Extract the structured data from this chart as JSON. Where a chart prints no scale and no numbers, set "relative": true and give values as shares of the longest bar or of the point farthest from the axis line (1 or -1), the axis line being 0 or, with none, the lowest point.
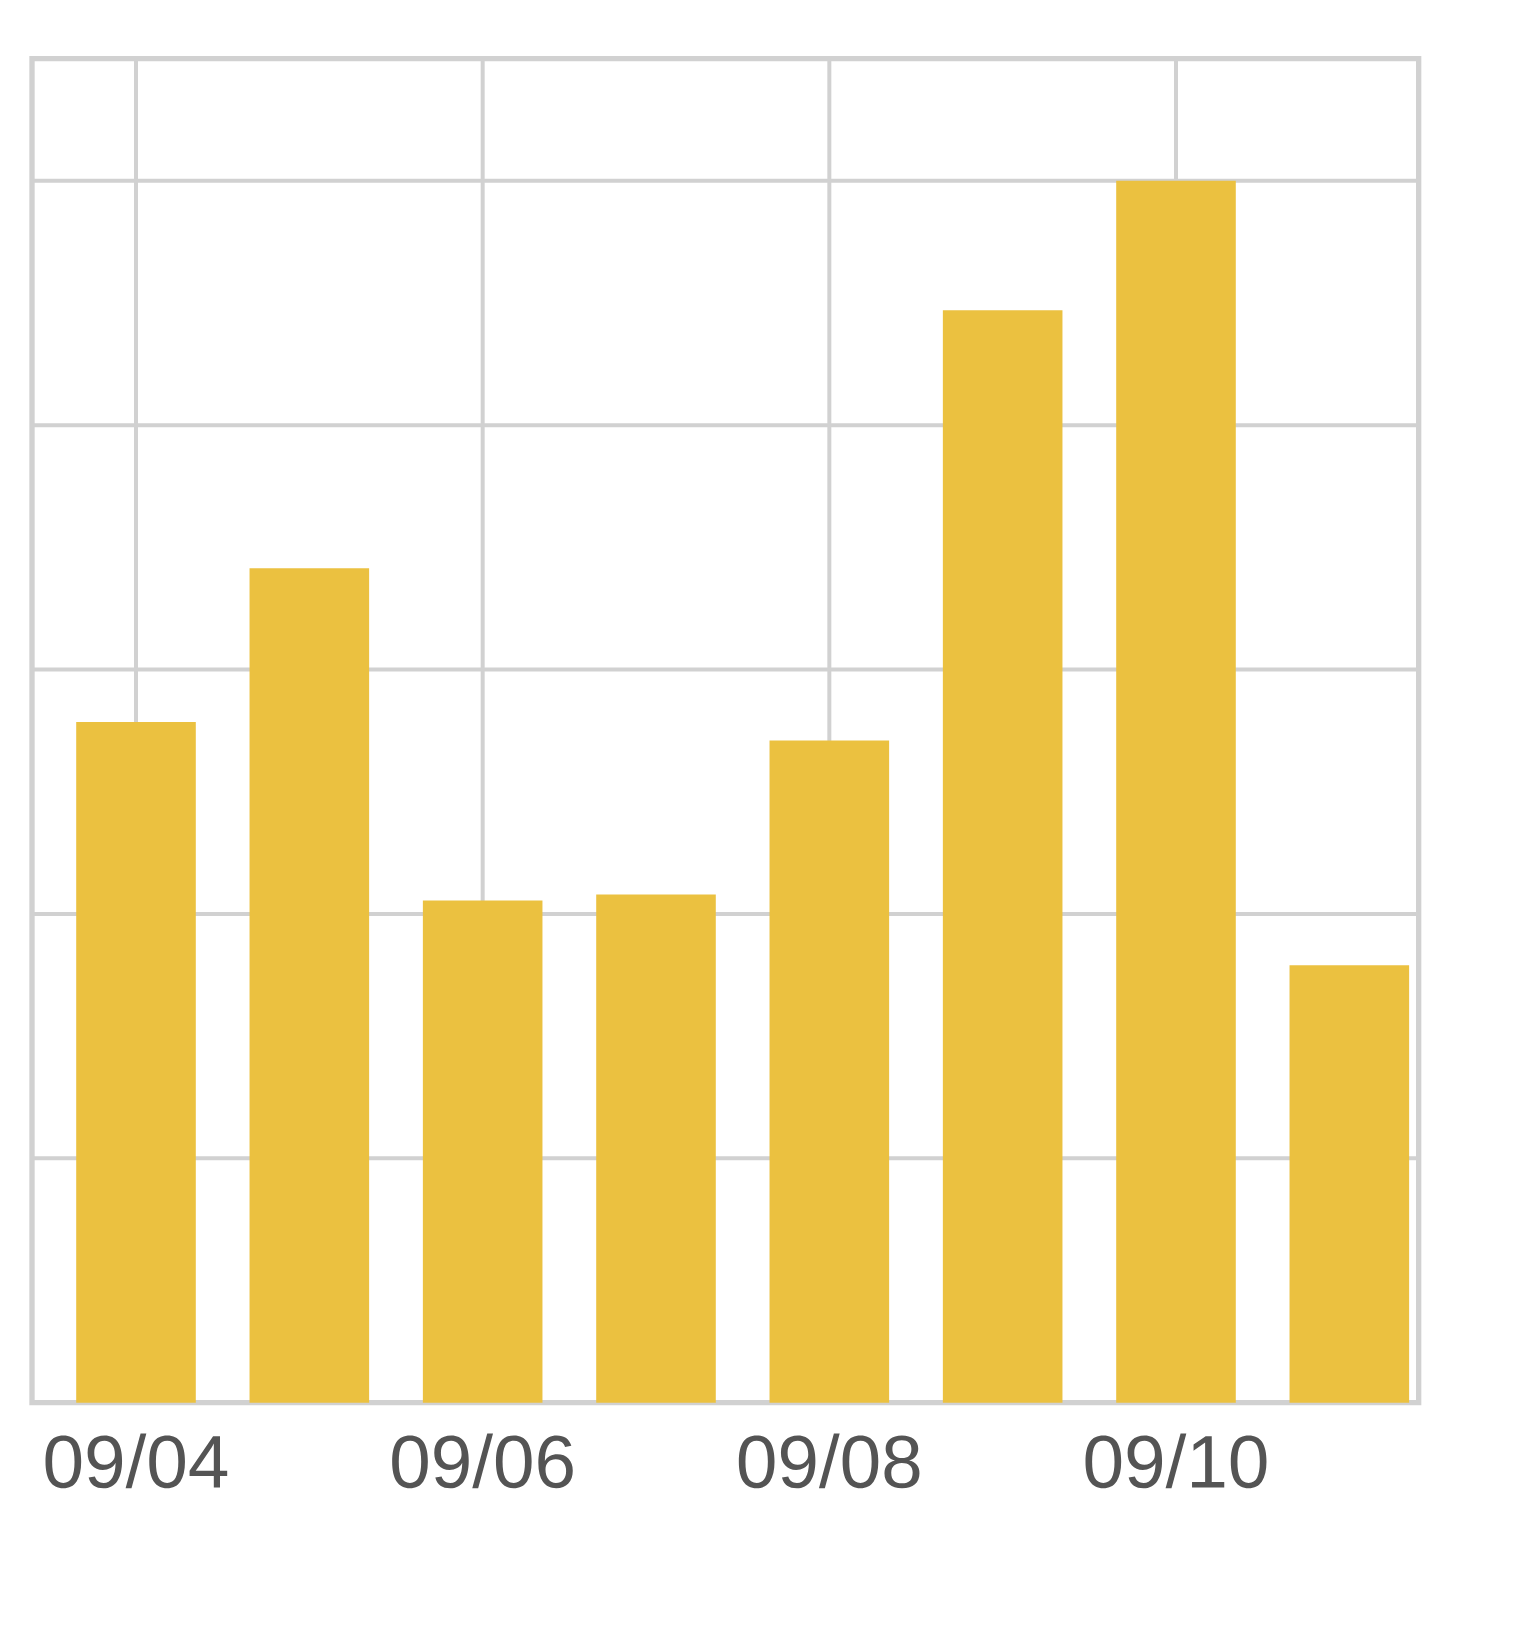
{
  "chart_data": {
    "type": "bar",
    "relative": true,
    "categories": [
      "09/04",
      null,
      "09/06",
      null,
      "09/08",
      null,
      "09/10",
      null
    ],
    "values": [
      0.557,
      0.683,
      0.411,
      0.416,
      0.542,
      0.894,
      1,
      0.358
    ],
    "color": "#ebc140",
    "grid": true
  }
}
